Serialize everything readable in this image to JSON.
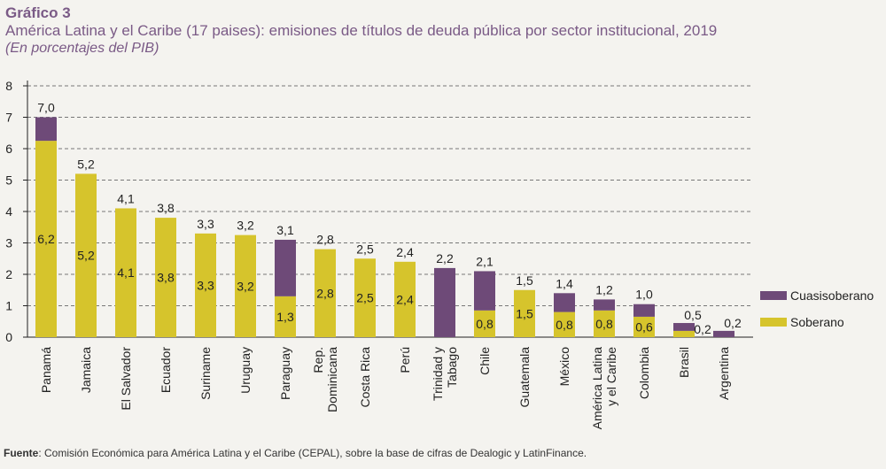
{
  "figure": {
    "label": "Gráfico 3",
    "title": "América Latina y el Caribe (17 paises): emisiones de títulos de deuda pública por sector institucional, 2019",
    "subtitle": "(En porcentajes del PIB)"
  },
  "source": {
    "label": "Fuente",
    "text": ":   Comisión Económica para América Latina y el Caribe (CEPAL), sobre la base de cifras de Dealogic y LatinFinance."
  },
  "colors": {
    "soberano": "#d6c42c",
    "cuasisoberano": "#6e4a78",
    "grid": "#777777"
  },
  "chart_data": {
    "type": "bar",
    "stacked": true,
    "categories": [
      [
        "Panamá"
      ],
      [
        "Jamaica"
      ],
      [
        "El Salvador"
      ],
      [
        "Ecuador"
      ],
      [
        "Suriname"
      ],
      [
        "Uruguay"
      ],
      [
        "Paraguay"
      ],
      [
        "Rep.",
        "Dominicana"
      ],
      [
        "Costa Rica"
      ],
      [
        "Perú"
      ],
      [
        "Trinidad y",
        "Tabago"
      ],
      [
        "Chile"
      ],
      [
        "Guatemala"
      ],
      [
        "México"
      ],
      [
        "América Latina",
        "y el Caribe"
      ],
      [
        "Colombia"
      ],
      [
        "Brasil"
      ],
      [
        "Argentina"
      ]
    ],
    "series": [
      {
        "name": "Soberano",
        "values": [
          6.25,
          5.2,
          4.1,
          3.8,
          3.3,
          3.25,
          1.3,
          2.8,
          2.5,
          2.4,
          0,
          0.85,
          1.5,
          0.8,
          0.85,
          0.65,
          0.2,
          0
        ],
        "labels": [
          "6,2",
          "5,2",
          "4,1",
          "3,8",
          "3,3",
          "3,2",
          "1,3",
          "2,8",
          "2,5",
          "2,4",
          "",
          "0,8",
          "1,5",
          "0,8",
          "0,8",
          "0,6",
          "0,2",
          ""
        ]
      },
      {
        "name": "Cuasisoberano",
        "values": [
          0.75,
          0,
          0,
          0,
          0,
          0,
          1.8,
          0,
          0,
          0,
          2.2,
          1.25,
          0,
          0.6,
          0.35,
          0.4,
          0.25,
          0.2
        ],
        "labels": []
      }
    ],
    "totals": [
      "7,0",
      "5,2",
      "4,1",
      "3,8",
      "3,3",
      "3,2",
      "3,1",
      "2,8",
      "2,5",
      "2,4",
      "2,2",
      "2,1",
      "1,5",
      "1,4",
      "1,2",
      "1,0",
      "0,5",
      "0,2"
    ],
    "ylim": [
      0,
      8
    ],
    "yticks": [
      "0",
      "1",
      "2",
      "3",
      "4",
      "5",
      "6",
      "7",
      "8"
    ],
    "grid": true,
    "legend_position": "right",
    "legend": [
      "Cuasisoberano",
      "Soberano"
    ]
  }
}
